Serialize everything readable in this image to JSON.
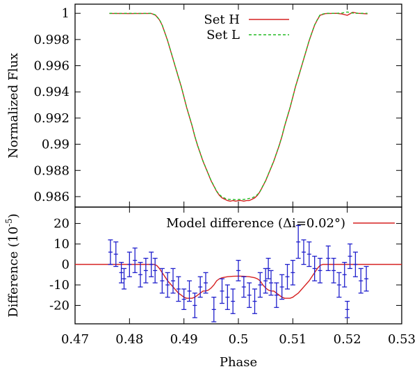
{
  "chart_data": [
    {
      "type": "line",
      "panel": "top",
      "ylabel": "Normalized Flux",
      "xlim": [
        0.47,
        0.53
      ],
      "ylim": [
        0.9852,
        1.0007
      ],
      "yticks": [
        0.986,
        0.988,
        0.99,
        0.992,
        0.994,
        0.996,
        0.998,
        1
      ],
      "ytick_labels": [
        "0.986",
        "0.988",
        "0.99",
        "0.992",
        "0.994",
        "0.996",
        "0.998",
        "1"
      ],
      "legend": {
        "placement": "top-center",
        "entries": [
          "Set H",
          "Set L"
        ]
      },
      "series": [
        {
          "name": "Set H",
          "color": "#d62020",
          "style": "solid",
          "x": [
            0.4763,
            0.478,
            0.48,
            0.482,
            0.484,
            0.4848,
            0.4855,
            0.486,
            0.4865,
            0.487,
            0.4875,
            0.488,
            0.4885,
            0.489,
            0.4895,
            0.49,
            0.4905,
            0.491,
            0.4915,
            0.492,
            0.4925,
            0.493,
            0.4935,
            0.494,
            0.4945,
            0.495,
            0.4955,
            0.496,
            0.4965,
            0.497,
            0.4975,
            0.498,
            0.4985,
            0.499,
            0.4995,
            0.5,
            0.5005,
            0.501,
            0.5015,
            0.502,
            0.5025,
            0.503,
            0.5035,
            0.504,
            0.5045,
            0.505,
            0.5055,
            0.506,
            0.5065,
            0.507,
            0.5075,
            0.508,
            0.5085,
            0.509,
            0.5095,
            0.51,
            0.5105,
            0.511,
            0.5115,
            0.512,
            0.5125,
            0.513,
            0.5135,
            0.514,
            0.5145,
            0.515,
            0.516,
            0.518,
            0.519,
            0.52,
            0.521,
            0.522,
            0.5237
          ],
          "values": [
            0.99999,
            0.99999,
            0.99998,
            0.99999,
            0.99999,
            0.99985,
            0.9995,
            0.9991,
            0.9985,
            0.9979,
            0.9972,
            0.9965,
            0.9958,
            0.9951,
            0.9944,
            0.9936,
            0.9928,
            0.9921,
            0.9914,
            0.9906,
            0.9899,
            0.9893,
            0.9887,
            0.9882,
            0.9877,
            0.9872,
            0.9868,
            0.9864,
            0.9861,
            0.9859,
            0.9858,
            0.9857,
            0.98565,
            0.9857,
            0.98565,
            0.9857,
            0.9857,
            0.98565,
            0.9857,
            0.9857,
            0.9858,
            0.9859,
            0.9861,
            0.9864,
            0.9868,
            0.9872,
            0.9877,
            0.9882,
            0.9887,
            0.9893,
            0.9899,
            0.9906,
            0.9914,
            0.9921,
            0.9928,
            0.9936,
            0.9944,
            0.9951,
            0.9958,
            0.9965,
            0.9972,
            0.9979,
            0.9985,
            0.9991,
            0.9995,
            0.99985,
            0.99998,
            1.0,
            0.99995,
            0.99985,
            1.00008,
            1.0,
            0.99996
          ]
        },
        {
          "name": "Set L",
          "color": "#22bb22",
          "style": "dashed",
          "x": [
            0.4763,
            0.478,
            0.48,
            0.482,
            0.484,
            0.4848,
            0.4855,
            0.486,
            0.4865,
            0.487,
            0.4875,
            0.488,
            0.4885,
            0.489,
            0.4895,
            0.49,
            0.4905,
            0.491,
            0.4915,
            0.492,
            0.4925,
            0.493,
            0.4935,
            0.494,
            0.4945,
            0.495,
            0.4955,
            0.496,
            0.4965,
            0.497,
            0.4975,
            0.498,
            0.4985,
            0.499,
            0.4995,
            0.5,
            0.5005,
            0.501,
            0.5015,
            0.502,
            0.5025,
            0.503,
            0.5035,
            0.504,
            0.5045,
            0.505,
            0.5055,
            0.506,
            0.5065,
            0.507,
            0.5075,
            0.508,
            0.5085,
            0.509,
            0.5095,
            0.51,
            0.5105,
            0.511,
            0.5115,
            0.512,
            0.5125,
            0.513,
            0.5135,
            0.514,
            0.5145,
            0.515,
            0.516,
            0.518,
            0.519,
            0.52,
            0.521,
            0.522,
            0.5237
          ],
          "values": [
            1.0,
            0.99999,
            1.0,
            0.99999,
            1.0,
            0.99987,
            0.99952,
            0.99912,
            0.99852,
            0.99792,
            0.99722,
            0.99652,
            0.99582,
            0.99512,
            0.99442,
            0.99362,
            0.99282,
            0.99212,
            0.99142,
            0.99062,
            0.98992,
            0.98932,
            0.98872,
            0.98822,
            0.98772,
            0.98722,
            0.98682,
            0.98642,
            0.98615,
            0.98598,
            0.98588,
            0.9858,
            0.98578,
            0.98578,
            0.98576,
            0.98578,
            0.98578,
            0.98578,
            0.98582,
            0.98586,
            0.9859,
            0.986,
            0.98615,
            0.98642,
            0.98682,
            0.98722,
            0.98772,
            0.98822,
            0.98872,
            0.98932,
            0.98992,
            0.99062,
            0.99142,
            0.99212,
            0.99282,
            0.99362,
            0.99442,
            0.99512,
            0.99582,
            0.99652,
            0.99722,
            0.99792,
            0.99852,
            0.99912,
            0.99952,
            0.99988,
            1.0,
            1.0,
            1.00002,
            1.0001,
            1.00002,
            1.0,
            1.0
          ]
        }
      ]
    },
    {
      "type": "scatter",
      "panel": "bottom",
      "xlabel": "Phase",
      "ylabel": "Difference (10",
      "ylabel_exponent": "-5",
      "ylabel_suffix": ")",
      "xlim": [
        0.47,
        0.53
      ],
      "ylim": [
        -29,
        28
      ],
      "xticks": [
        0.47,
        0.48,
        0.49,
        0.5,
        0.51,
        0.52,
        0.53
      ],
      "xtick_labels": [
        "0.47",
        "0.48",
        "0.49",
        "0.5",
        "0.51",
        "0.52",
        "0.53"
      ],
      "yticks": [
        -20,
        -10,
        0,
        10,
        20
      ],
      "ytick_labels": [
        "-20",
        "-10",
        "0",
        "10",
        "20"
      ],
      "legend": {
        "placement": "top-right",
        "entries": [
          "Model difference  (Δi=0.02°)"
        ]
      },
      "series": [
        {
          "name": "Model difference  (Δi=0.02°)",
          "type": "line",
          "color": "#d62020",
          "x": [
            0.47,
            0.4845,
            0.485,
            0.4855,
            0.486,
            0.4865,
            0.487,
            0.4875,
            0.488,
            0.4885,
            0.489,
            0.4895,
            0.49,
            0.4905,
            0.491,
            0.4915,
            0.492,
            0.4925,
            0.493,
            0.4935,
            0.494,
            0.4945,
            0.495,
            0.4955,
            0.496,
            0.4965,
            0.497,
            0.498,
            0.499,
            0.5,
            0.501,
            0.502,
            0.503,
            0.5035,
            0.504,
            0.5045,
            0.505,
            0.5055,
            0.506,
            0.5065,
            0.507,
            0.5075,
            0.508,
            0.5085,
            0.509,
            0.5095,
            0.51,
            0.5105,
            0.511,
            0.5115,
            0.512,
            0.5125,
            0.513,
            0.5135,
            0.514,
            0.5145,
            0.515,
            0.5155,
            0.53
          ],
          "values": [
            0,
            0,
            -0.5,
            -2,
            -4,
            -6,
            -8,
            -9.5,
            -11,
            -12.5,
            -14,
            -15,
            -16,
            -16.5,
            -16.5,
            -16.5,
            -16,
            -15,
            -14,
            -13,
            -13,
            -12.5,
            -11.5,
            -10,
            -8,
            -7,
            -6.5,
            -6,
            -5.8,
            -5.7,
            -5.8,
            -6,
            -6.5,
            -7,
            -8,
            -10,
            -11.5,
            -12.5,
            -13,
            -13,
            -14,
            -15,
            -16,
            -16.5,
            -16.5,
            -16.5,
            -16,
            -15,
            -14,
            -12.5,
            -11,
            -9.5,
            -8,
            -6,
            -4,
            -2,
            -0.5,
            0,
            0
          ]
        },
        {
          "name": "Residuals",
          "type": "errorbar",
          "color": "#1f1fcc",
          "x": [
            0.4765,
            0.4775,
            0.4785,
            0.479,
            0.48,
            0.481,
            0.482,
            0.483,
            0.484,
            0.4847,
            0.486,
            0.487,
            0.488,
            0.489,
            0.49,
            0.491,
            0.492,
            0.493,
            0.494,
            0.4955,
            0.497,
            0.498,
            0.499,
            0.5,
            0.501,
            0.502,
            0.503,
            0.504,
            0.505,
            0.5055,
            0.506,
            0.507,
            0.508,
            0.509,
            0.51,
            0.511,
            0.512,
            0.513,
            0.514,
            0.515,
            0.5165,
            0.5175,
            0.5185,
            0.5195,
            0.52,
            0.5205,
            0.5215,
            0.5225,
            0.5235
          ],
          "values": [
            6,
            5,
            -4,
            -7,
            0,
            2,
            -5,
            -3,
            0,
            -3,
            -8,
            -10,
            -8,
            -12,
            -17,
            -13,
            -20,
            -11,
            -9,
            -22,
            -13,
            -16,
            -18,
            -3,
            -11,
            -15,
            -18,
            -10,
            -8,
            -2,
            -9,
            -15,
            -11,
            -6,
            -4,
            11,
            6,
            5,
            -2,
            -3,
            3,
            -3,
            -10,
            -5,
            -22,
            4,
            0,
            -8,
            -7
          ],
          "errors": [
            6,
            6,
            5,
            5,
            6,
            6,
            6,
            6,
            6,
            6,
            6,
            6,
            6,
            6,
            5,
            5,
            6,
            5,
            5,
            6,
            6,
            6,
            6,
            5,
            5,
            6,
            6,
            6,
            6,
            5,
            6,
            6,
            6,
            6,
            6,
            8,
            6,
            6,
            6,
            6,
            6,
            6,
            6,
            6,
            4,
            6,
            6,
            6,
            6
          ]
        }
      ]
    }
  ]
}
